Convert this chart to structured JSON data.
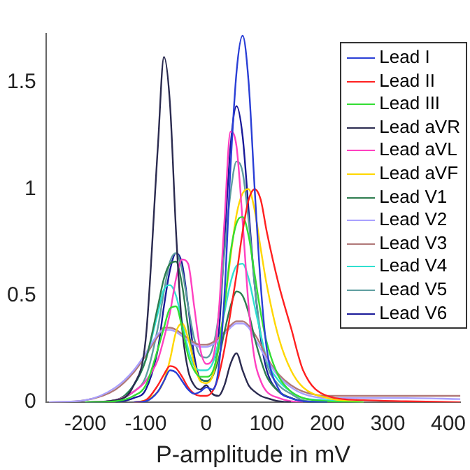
{
  "chart_data": {
    "type": "line",
    "xlabel": "P-amplitude in mV",
    "xlim": [
      -265,
      420
    ],
    "xticks": [
      -200,
      -100,
      0,
      100,
      200,
      300,
      400
    ],
    "ylim": [
      0,
      1.73
    ],
    "yticks": [
      0,
      0.5,
      1,
      1.5
    ],
    "grid": false,
    "legend": "top right",
    "marker": "none",
    "line_style": "solid",
    "x": [
      -260,
      -200,
      -150,
      -120,
      -100,
      -80,
      -70,
      -60,
      -50,
      -40,
      -30,
      -20,
      -10,
      0,
      10,
      20,
      30,
      40,
      50,
      60,
      70,
      80,
      90,
      100,
      120,
      140,
      160,
      200,
      260,
      330,
      420
    ],
    "series": [
      {
        "name": "Lead I",
        "color": "#2a3fd6",
        "values": [
          null,
          null,
          null,
          0,
          0.005,
          0.05,
          0.1,
          0.15,
          0.14,
          0.1,
          0.06,
          0.04,
          0.05,
          0.07,
          0.06,
          0.15,
          0.5,
          1.1,
          1.55,
          1.72,
          1.5,
          1.0,
          0.55,
          0.25,
          0.06,
          0.02,
          0.005,
          0,
          null,
          null,
          null
        ]
      },
      {
        "name": "Lead II",
        "color": "#ff2020",
        "values": [
          null,
          null,
          null,
          0,
          0.01,
          0.08,
          0.13,
          0.17,
          0.16,
          0.12,
          0.07,
          0.04,
          0.03,
          0.03,
          0.05,
          0.12,
          0.25,
          0.42,
          0.6,
          0.8,
          0.95,
          1.0,
          0.95,
          0.8,
          0.55,
          0.35,
          0.15,
          0.03,
          0.01,
          0.005,
          0
        ]
      },
      {
        "name": "Lead III",
        "color": "#33dd33",
        "values": [
          null,
          0,
          0.005,
          0.03,
          0.08,
          0.25,
          0.35,
          0.44,
          0.45,
          0.35,
          0.22,
          0.15,
          0.12,
          0.12,
          0.14,
          0.25,
          0.45,
          0.7,
          0.84,
          0.87,
          0.78,
          0.6,
          0.42,
          0.28,
          0.12,
          0.05,
          0.02,
          0.005,
          0,
          null,
          null
        ]
      },
      {
        "name": "Lead aVR",
        "color": "#2b2b50",
        "values": [
          null,
          0,
          0.01,
          0.08,
          0.3,
          1.2,
          1.62,
          1.4,
          0.8,
          0.35,
          0.15,
          0.08,
          0.06,
          0.08,
          0.04,
          0.03,
          0.08,
          0.18,
          0.23,
          0.15,
          0.08,
          0.05,
          0.03,
          0.02,
          0.005,
          0,
          null,
          null,
          null,
          null,
          null
        ]
      },
      {
        "name": "Lead aVL",
        "color": "#ff40c0",
        "values": [
          null,
          0,
          0.01,
          0.05,
          0.1,
          0.2,
          0.3,
          0.42,
          0.58,
          0.67,
          0.65,
          0.45,
          0.25,
          0.18,
          0.2,
          0.4,
          0.85,
          1.27,
          1.2,
          0.85,
          0.45,
          0.2,
          0.1,
          0.05,
          0.02,
          0.005,
          0,
          null,
          null,
          null,
          null
        ]
      },
      {
        "name": "Lead aVF",
        "color": "#ffd700",
        "values": [
          null,
          null,
          null,
          0,
          0.01,
          0.05,
          0.1,
          0.2,
          0.33,
          0.37,
          0.3,
          0.18,
          0.1,
          0.09,
          0.12,
          0.25,
          0.45,
          0.68,
          0.88,
          0.98,
          1.0,
          0.9,
          0.72,
          0.55,
          0.3,
          0.15,
          0.07,
          0.02,
          0,
          null,
          null
        ]
      },
      {
        "name": "Lead V1",
        "color": "#2e7d4f",
        "values": [
          null,
          0,
          0.01,
          0.08,
          0.2,
          0.45,
          0.58,
          0.65,
          0.66,
          0.55,
          0.35,
          0.18,
          0.11,
          0.1,
          0.12,
          0.2,
          0.33,
          0.45,
          0.52,
          0.5,
          0.42,
          0.3,
          0.2,
          0.12,
          0.05,
          0.02,
          0.005,
          0,
          null,
          null,
          null
        ]
      },
      {
        "name": "Lead V2",
        "color": "#a9a0ff",
        "values": [
          0,
          0.01,
          0.07,
          0.15,
          0.23,
          0.32,
          0.34,
          0.34,
          0.33,
          0.31,
          0.29,
          0.27,
          0.26,
          0.26,
          0.27,
          0.29,
          0.32,
          0.35,
          0.37,
          0.37,
          0.35,
          0.3,
          0.25,
          0.2,
          0.12,
          0.07,
          0.04,
          0.02,
          0.02,
          0.02,
          0.015
        ]
      },
      {
        "name": "Lead V3",
        "color": "#b07878",
        "values": [
          0,
          0.01,
          0.06,
          0.14,
          0.22,
          0.31,
          0.35,
          0.35,
          0.34,
          0.32,
          0.3,
          0.28,
          0.27,
          0.27,
          0.28,
          0.3,
          0.33,
          0.36,
          0.38,
          0.38,
          0.36,
          0.32,
          0.27,
          0.21,
          0.13,
          0.08,
          0.05,
          0.03,
          0.03,
          0.03,
          0.03
        ]
      },
      {
        "name": "Lead V4",
        "color": "#30e0d0",
        "values": [
          null,
          0,
          0.01,
          0.08,
          0.2,
          0.42,
          0.53,
          0.55,
          0.5,
          0.38,
          0.25,
          0.17,
          0.15,
          0.15,
          0.18,
          0.28,
          0.42,
          0.56,
          0.64,
          0.65,
          0.58,
          0.45,
          0.32,
          0.2,
          0.1,
          0.05,
          0.02,
          0.01,
          0,
          null,
          null
        ]
      },
      {
        "name": "Lead V5",
        "color": "#5f9ea0",
        "values": [
          null,
          0,
          0.01,
          0.05,
          0.12,
          0.35,
          0.52,
          0.66,
          0.7,
          0.62,
          0.45,
          0.3,
          0.22,
          0.21,
          0.25,
          0.4,
          0.7,
          0.98,
          1.13,
          1.08,
          0.85,
          0.55,
          0.32,
          0.18,
          0.08,
          0.04,
          0.01,
          0,
          null,
          null,
          null
        ]
      },
      {
        "name": "Lead V6",
        "color": "#1a1a99",
        "values": [
          null,
          null,
          0,
          0.02,
          0.06,
          0.25,
          0.45,
          0.62,
          0.7,
          0.65,
          0.45,
          0.22,
          0.11,
          0.1,
          0.12,
          0.3,
          0.75,
          1.2,
          1.39,
          1.25,
          0.9,
          0.55,
          0.3,
          0.15,
          0.05,
          0.02,
          0.005,
          0,
          null,
          null,
          null
        ]
      }
    ]
  }
}
